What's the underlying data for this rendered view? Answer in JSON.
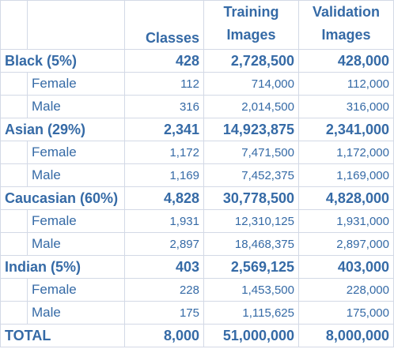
{
  "headers": {
    "classes": "Classes",
    "training_line1": "Training",
    "training_line2": "Images",
    "validation_line1": "Validation",
    "validation_line2": "Images"
  },
  "rows": [
    {
      "kind": "group",
      "label": "Black  (5%)",
      "classes": "428",
      "training": "2,728,500",
      "validation": "428,000"
    },
    {
      "kind": "sub",
      "label": "Female",
      "classes": "112",
      "training": "714,000",
      "validation": "112,000"
    },
    {
      "kind": "sub",
      "label": "Male",
      "classes": "316",
      "training": "2,014,500",
      "validation": "316,000"
    },
    {
      "kind": "group",
      "label": "Asian (29%)",
      "classes": "2,341",
      "training": "14,923,875",
      "validation": "2,341,000"
    },
    {
      "kind": "sub",
      "label": "Female",
      "classes": "1,172",
      "training": "7,471,500",
      "validation": "1,172,000"
    },
    {
      "kind": "sub",
      "label": "Male",
      "classes": "1,169",
      "training": "7,452,375",
      "validation": "1,169,000"
    },
    {
      "kind": "group",
      "label": "Caucasian (60%)",
      "classes": "4,828",
      "training": "30,778,500",
      "validation": "4,828,000"
    },
    {
      "kind": "sub",
      "label": "Female",
      "classes": "1,931",
      "training": "12,310,125",
      "validation": "1,931,000"
    },
    {
      "kind": "sub",
      "label": "Male",
      "classes": "2,897",
      "training": "18,468,375",
      "validation": "2,897,000"
    },
    {
      "kind": "group",
      "label": "Indian (5%)",
      "classes": "403",
      "training": "2,569,125",
      "validation": "403,000"
    },
    {
      "kind": "sub",
      "label": "Female",
      "classes": "228",
      "training": "1,453,500",
      "validation": "228,000"
    },
    {
      "kind": "sub",
      "label": "Male",
      "classes": "175",
      "training": "1,115,625",
      "validation": "175,000"
    },
    {
      "kind": "total",
      "label": "TOTAL",
      "classes": "8,000",
      "training": "51,000,000",
      "validation": "8,000,000"
    }
  ]
}
